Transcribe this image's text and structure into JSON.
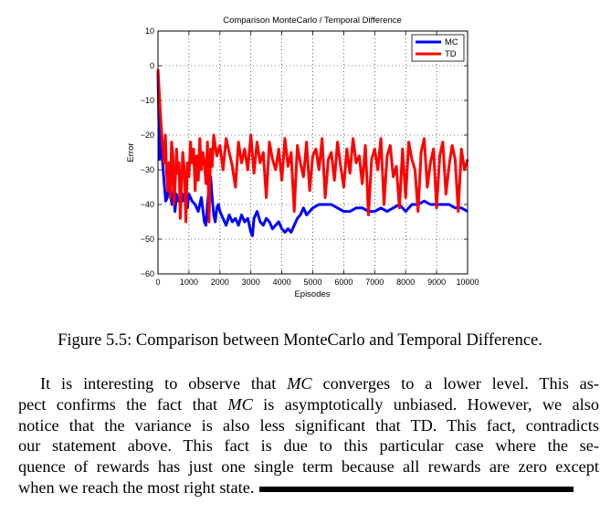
{
  "chart_data": {
    "type": "line",
    "title": "Comparison MonteCarlo / Temporal Difference",
    "xlabel": "Episodes",
    "ylabel": "Error",
    "xlim": [
      0,
      10000
    ],
    "ylim": [
      -60,
      10
    ],
    "xticks": [
      "0",
      "1000",
      "2000",
      "3000",
      "4000",
      "5000",
      "6000",
      "7000",
      "8000",
      "9000",
      "10000"
    ],
    "yticks": [
      "10",
      "0",
      "−10",
      "−20",
      "−30",
      "−40",
      "−50",
      "−60"
    ],
    "grid": true,
    "legend_position": "top-right",
    "series": [
      {
        "name": "MC",
        "color": "#0000ff",
        "x": [
          0,
          50,
          100,
          150,
          200,
          250,
          300,
          350,
          400,
          450,
          500,
          550,
          600,
          650,
          700,
          750,
          800,
          850,
          900,
          950,
          1000,
          1100,
          1200,
          1300,
          1400,
          1500,
          1550,
          1600,
          1650,
          1700,
          1750,
          1800,
          1850,
          1900,
          1950,
          2000,
          2100,
          2200,
          2300,
          2400,
          2500,
          2600,
          2700,
          2800,
          2900,
          3000,
          3050,
          3100,
          3200,
          3300,
          3400,
          3500,
          3600,
          3700,
          3800,
          3900,
          4000,
          4100,
          4200,
          4300,
          4400,
          4500,
          4600,
          4700,
          4800,
          4900,
          5000,
          5200,
          5400,
          5600,
          5800,
          6000,
          6200,
          6400,
          6600,
          6800,
          7000,
          7200,
          7400,
          7600,
          7800,
          8000,
          8200,
          8400,
          8600,
          8800,
          9000,
          9200,
          9400,
          9600,
          9800,
          10000
        ],
        "values": [
          -2,
          -27,
          -19,
          -28,
          -34,
          -39,
          -38,
          -33,
          -37,
          -40,
          -36,
          -42,
          -37,
          -39,
          -38,
          -36,
          -39,
          -37,
          -38,
          -41,
          -37,
          -39,
          -40,
          -42,
          -38,
          -45,
          -46,
          -40,
          -35,
          -32,
          -38,
          -43,
          -45,
          -41,
          -40,
          -42,
          -44,
          -46,
          -43,
          -45,
          -44,
          -46,
          -43,
          -45,
          -44,
          -48,
          -49,
          -44,
          -42,
          -45,
          -46,
          -44,
          -45,
          -47,
          -46,
          -45,
          -47,
          -48,
          -47,
          -48,
          -46,
          -44,
          -43,
          -41,
          -43,
          -42,
          -41,
          -40,
          -40,
          -40,
          -41,
          -42,
          -42,
          -41,
          -41,
          -42,
          -42,
          -41,
          -42,
          -41,
          -40,
          -42,
          -40,
          -40,
          -39,
          -40,
          -40,
          -40,
          -40,
          -41,
          -41,
          -42
        ]
      },
      {
        "name": "TD",
        "color": "#ff0000",
        "x": [
          0,
          40,
          80,
          120,
          160,
          200,
          240,
          280,
          320,
          360,
          400,
          440,
          480,
          520,
          560,
          600,
          640,
          680,
          720,
          760,
          800,
          850,
          900,
          950,
          1000,
          1050,
          1100,
          1150,
          1200,
          1250,
          1300,
          1350,
          1400,
          1450,
          1500,
          1550,
          1600,
          1650,
          1700,
          1750,
          1800,
          1900,
          2000,
          2100,
          2200,
          2300,
          2400,
          2500,
          2600,
          2700,
          2800,
          2900,
          3000,
          3100,
          3200,
          3300,
          3400,
          3500,
          3600,
          3700,
          3800,
          3900,
          4000,
          4100,
          4200,
          4300,
          4400,
          4500,
          4600,
          4700,
          4800,
          4900,
          5000,
          5100,
          5200,
          5300,
          5400,
          5500,
          5600,
          5700,
          5800,
          5900,
          6000,
          6100,
          6200,
          6300,
          6400,
          6500,
          6600,
          6700,
          6800,
          6900,
          7000,
          7100,
          7200,
          7300,
          7400,
          7500,
          7600,
          7700,
          7800,
          7900,
          8000,
          8100,
          8200,
          8300,
          8400,
          8500,
          8600,
          8700,
          8800,
          8900,
          9000,
          9100,
          9200,
          9300,
          9400,
          9500,
          9600,
          9700,
          9800,
          9900,
          10000
        ],
        "values": [
          -1,
          -8,
          -14,
          -20,
          -24,
          -28,
          -20,
          -31,
          -36,
          -28,
          -38,
          -22,
          -26,
          -40,
          -33,
          -24,
          -31,
          -28,
          -44,
          -34,
          -25,
          -30,
          -45,
          -28,
          -32,
          -22,
          -28,
          -24,
          -36,
          -26,
          -33,
          -21,
          -30,
          -25,
          -28,
          -34,
          -22,
          -45,
          -24,
          -29,
          -20,
          -26,
          -23,
          -30,
          -21,
          -25,
          -29,
          -35,
          -22,
          -28,
          -24,
          -30,
          -20,
          -31,
          -22,
          -28,
          -25,
          -38,
          -22,
          -27,
          -30,
          -24,
          -33,
          -21,
          -29,
          -25,
          -42,
          -23,
          -28,
          -32,
          -22,
          -36,
          -26,
          -24,
          -30,
          -21,
          -38,
          -27,
          -25,
          -33,
          -22,
          -29,
          -35,
          -24,
          -31,
          -21,
          -28,
          -26,
          -34,
          -23,
          -43,
          -27,
          -24,
          -30,
          -21,
          -40,
          -26,
          -23,
          -32,
          -29,
          -41,
          -24,
          -38,
          -22,
          -27,
          -30,
          -42,
          -25,
          -21,
          -35,
          -28,
          -24,
          -41,
          -26,
          -22,
          -37,
          -29,
          -23,
          -27,
          -42,
          -24,
          -30,
          -27
        ]
      }
    ]
  },
  "caption": "Figure 5.5: Comparison between MonteCarlo and Temporal Difference.",
  "paragraph": {
    "l1a": "It is interesting to observe that ",
    "l1m": "MC",
    "l1b": " converges to a lower level. This as-",
    "l2a": "pect confirms the fact that ",
    "l2m": "MC",
    "l2b": " is asymptotically unbiased. However, we also",
    "l3": "notice that the variance is also less significant that TD. This fact, contradicts",
    "l4": "our statement above. This fact is due to this particular case where the se-",
    "l5": "quence of rewards has just one single term because all rewards are zero except",
    "l6": "when we reach the most right state."
  }
}
